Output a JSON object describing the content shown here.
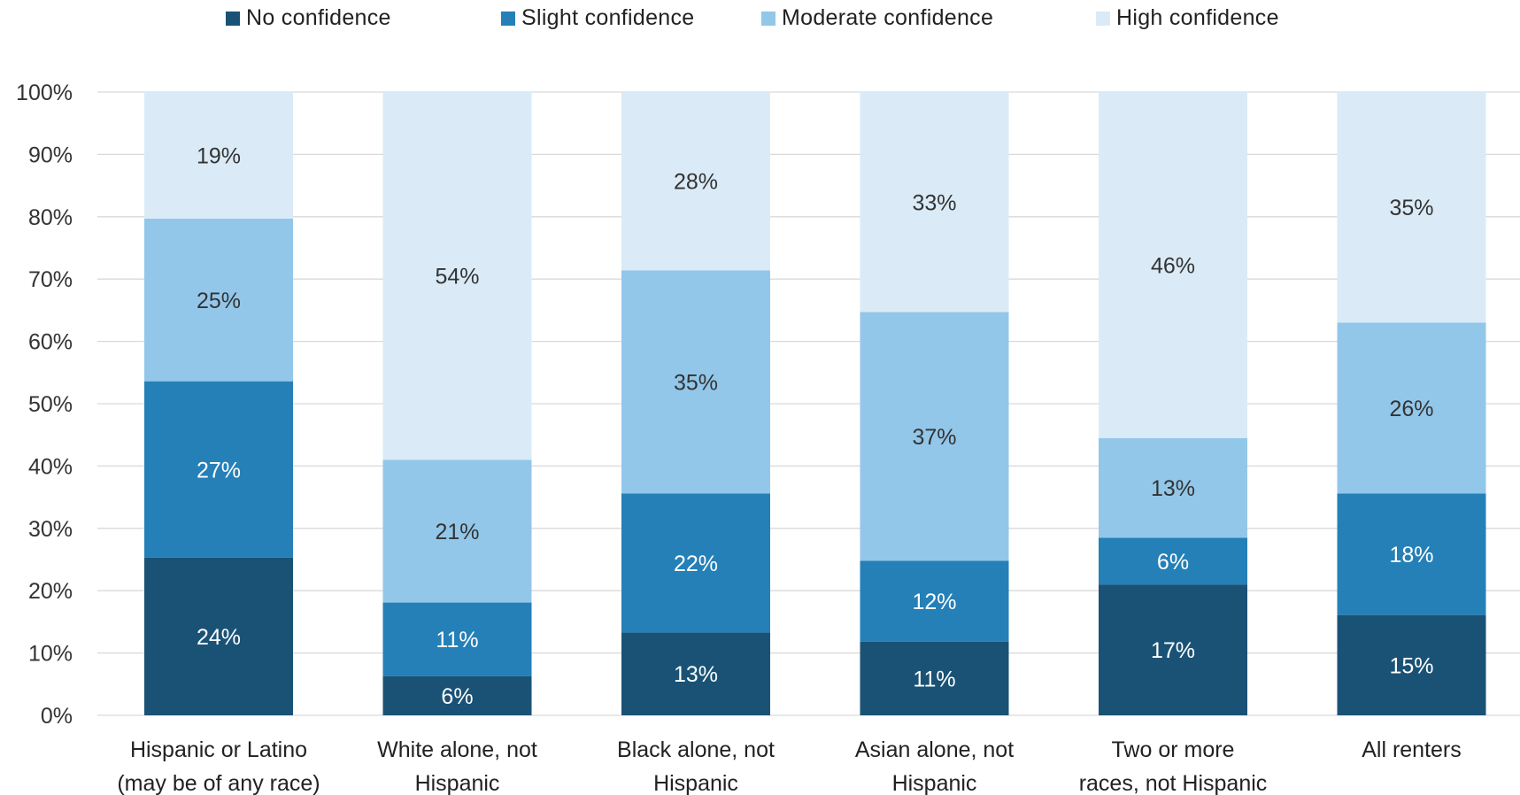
{
  "chart_data": {
    "type": "bar",
    "stacked": true,
    "percent_axis": true,
    "categories": [
      [
        "Hispanic or Latino",
        "(may be of any race)"
      ],
      [
        "White alone, not",
        "Hispanic"
      ],
      [
        "Black alone, not",
        "Hispanic"
      ],
      [
        "Asian alone, not",
        "Hispanic"
      ],
      [
        "Two or more",
        "races, not Hispanic"
      ],
      [
        "All renters"
      ]
    ],
    "series": [
      {
        "name": "No confidence",
        "color": "#1a5276",
        "values": [
          25.3,
          6.3,
          13.3,
          11.8,
          21.0,
          16.1
        ],
        "labels": [
          "24%",
          "6%",
          "13%",
          "11%",
          "17%",
          "15%"
        ],
        "label_color": "#ffffff"
      },
      {
        "name": "Slight confidence",
        "color": "#2580b8",
        "values": [
          28.3,
          11.8,
          22.3,
          13.0,
          7.5,
          19.5
        ],
        "labels": [
          "27%",
          "11%",
          "22%",
          "12%",
          "6%",
          "18%"
        ],
        "label_color": "#ffffff"
      },
      {
        "name": "Moderate confidence",
        "color": "#92c7ea",
        "values": [
          26.1,
          22.9,
          35.8,
          39.9,
          16.0,
          27.4
        ],
        "labels": [
          "25%",
          "21%",
          "35%",
          "37%",
          "13%",
          "26%"
        ],
        "label_color": "#333333"
      },
      {
        "name": "High confidence",
        "color": "#daebf7",
        "values": [
          20.3,
          59.0,
          28.6,
          35.3,
          55.5,
          37.0
        ],
        "labels": [
          "19%",
          "54%",
          "28%",
          "33%",
          "46%",
          "35%"
        ],
        "label_color": "#333333"
      }
    ],
    "y_ticks": [
      "0%",
      "10%",
      "20%",
      "30%",
      "40%",
      "50%",
      "60%",
      "70%",
      "80%",
      "90%",
      "100%"
    ],
    "ylim": [
      0,
      100
    ],
    "grid": true,
    "legend": "top"
  }
}
